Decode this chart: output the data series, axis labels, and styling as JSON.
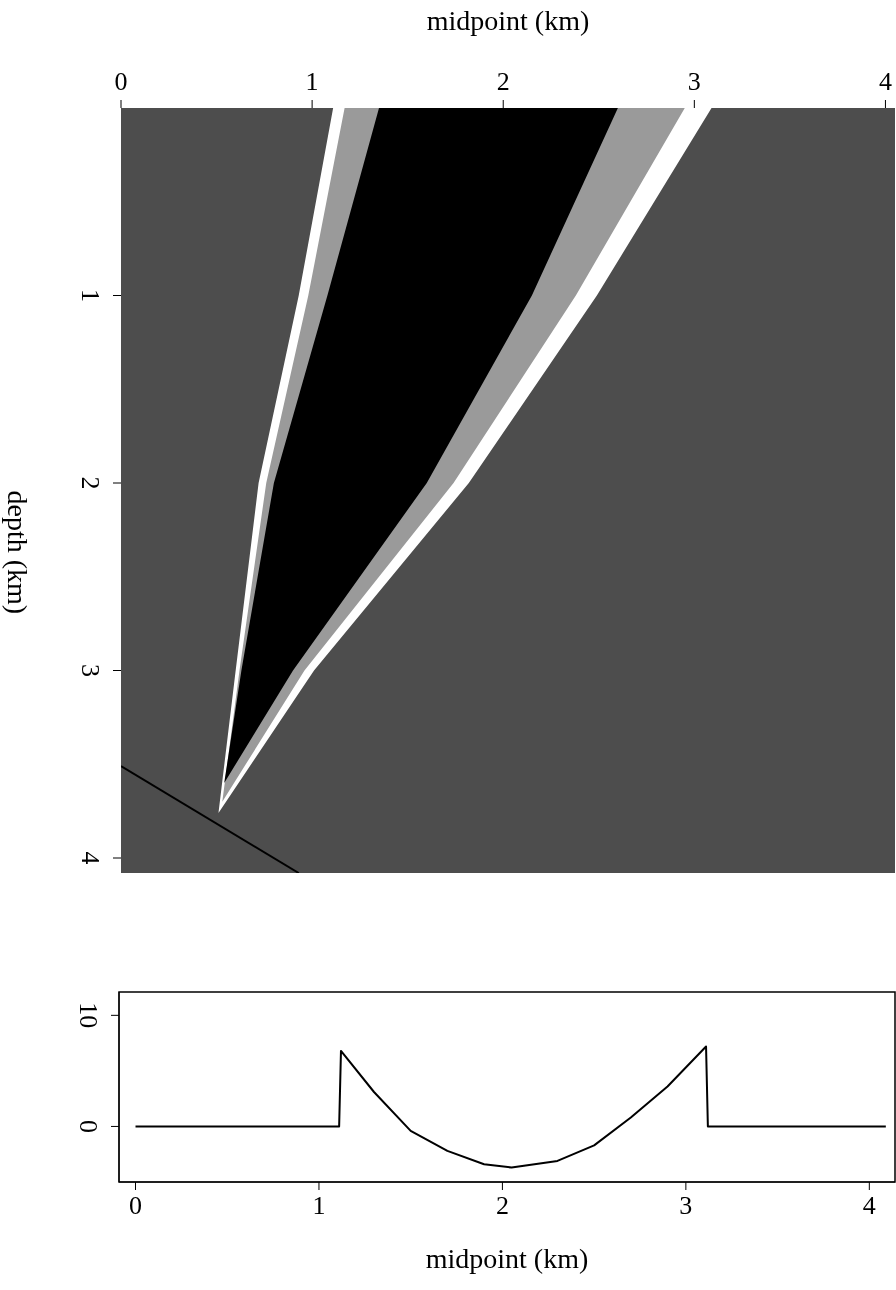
{
  "chart_data": [
    {
      "type": "line",
      "xlabel": "midpoint (km)",
      "ylabel": "depth (km)",
      "xlim": [
        0,
        4.05
      ],
      "xticks": [
        0,
        1,
        2,
        3,
        4
      ],
      "ylim": [
        4.08,
        0
      ],
      "yticks": [
        1,
        2,
        3,
        4
      ],
      "series": [
        {
          "color": "#000000",
          "x": [
            0,
            0.93
          ],
          "values": [
            3.51,
            4.08
          ]
        }
      ]
    },
    {
      "type": "line",
      "xlabel": "midpoint (km)",
      "xlim": [
        -0.09,
        4.14
      ],
      "xticks": [
        0,
        1,
        2,
        3,
        4
      ],
      "ylim": [
        -5,
        12.1
      ],
      "yticks": [
        0,
        10
      ],
      "color": "#000000",
      "x": [
        0,
        1.11,
        1.12,
        1.3,
        1.5,
        1.7,
        1.9,
        2.05,
        2.3,
        2.5,
        2.7,
        2.9,
        3.11,
        3.12,
        4.09
      ],
      "values": [
        0,
        0,
        6.8,
        3.1,
        -0.4,
        -2.2,
        -3.4,
        -3.7,
        -3.1,
        -1.7,
        0.8,
        3.6,
        7.2,
        0,
        0
      ]
    }
  ]
}
